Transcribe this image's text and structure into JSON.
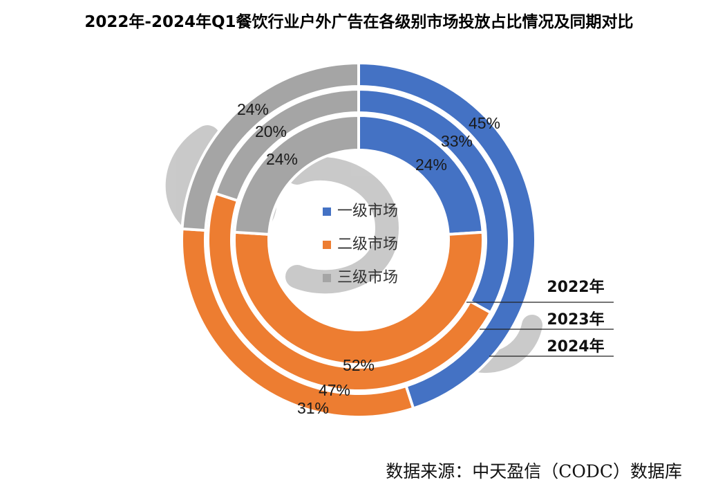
{
  "title": "2022年-2024年Q1餐饮行业户外广告在各级别市场投放占比情况及同期对比",
  "source_note": "数据来源：中天盈信（CODC）数据库",
  "chart_data": {
    "type": "doughnut",
    "title": "2022年-2024年Q1餐饮行业户外广告在各级别市场投放占比情况及同期对比",
    "categories": [
      "一级市场",
      "二级市场",
      "三级市场"
    ],
    "colors": [
      "#4472C4",
      "#ED7D31",
      "#A5A5A5"
    ],
    "rings": [
      {
        "name": "2022年",
        "values": [
          24,
          52,
          24
        ],
        "labels": [
          "24%",
          "52%",
          "24%"
        ]
      },
      {
        "name": "2023年",
        "values": [
          33,
          47,
          20
        ],
        "labels": [
          "33%",
          "47%",
          "20%"
        ]
      },
      {
        "name": "2024年",
        "values": [
          45,
          31,
          24
        ],
        "labels": [
          "45%",
          "31%",
          "24%"
        ]
      }
    ],
    "legend_position": "center"
  }
}
